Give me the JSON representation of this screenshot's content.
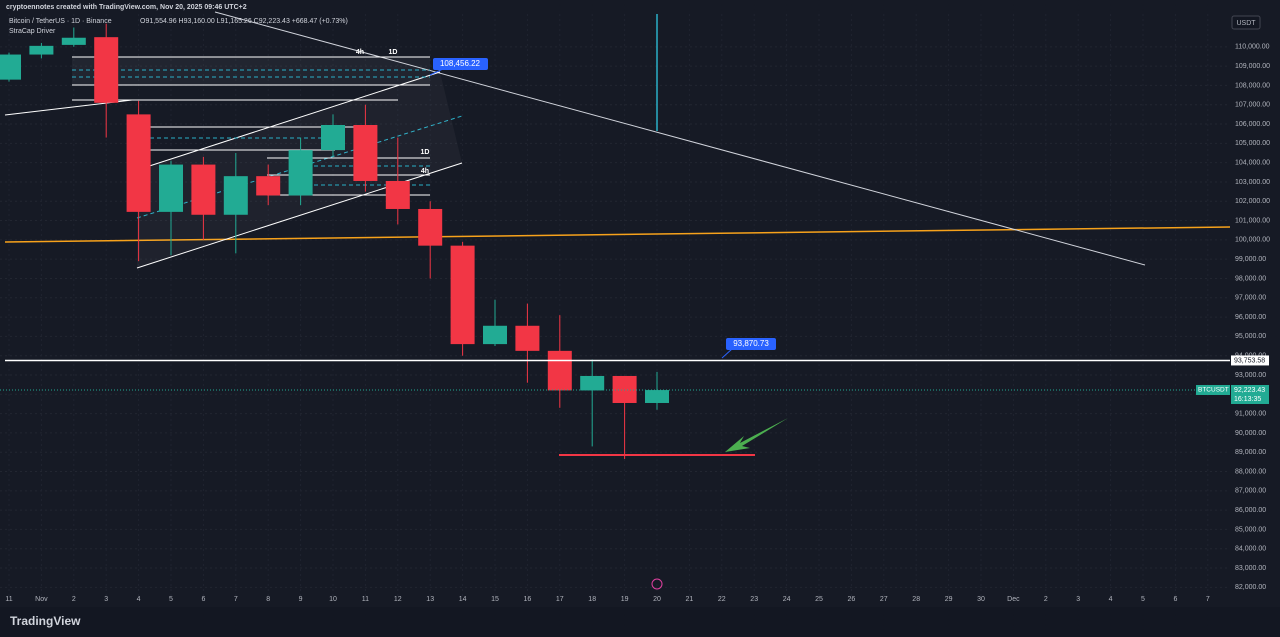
{
  "chart_data": {
    "type": "candlestick",
    "watermark": "cryptoennotes created with TradingView.com, Nov 20, 2025 09:46 UTC+2",
    "title": "Bitcoin / TetherUS · 1D · Binance",
    "ohlc_header": "O91,554.96 H93,160.00 L91,165.26 C92,223.43 +668.47 (+0.73%)",
    "indicator": "StraCap Driver",
    "currency": "USDT",
    "brand": "TradingView",
    "categories": [
      "11",
      "Nov",
      "2",
      "3",
      "4",
      "5",
      "6",
      "7",
      "8",
      "9",
      "10",
      "11",
      "12",
      "13",
      "14",
      "15",
      "16",
      "17",
      "18",
      "19",
      "20",
      "21",
      "22",
      "23",
      "24",
      "25",
      "26",
      "27",
      "28",
      "29",
      "30",
      "Dec",
      "2",
      "3",
      "4",
      "5",
      "6",
      "7"
    ],
    "open": [
      108300,
      109600,
      110100,
      110500,
      106500,
      101450,
      103900,
      101300,
      103300,
      102300,
      104650,
      105950,
      103050,
      101600,
      99700,
      94600,
      95550,
      94250,
      92200,
      92950,
      91550,
      null,
      null,
      null,
      null,
      null,
      null,
      null,
      null,
      null,
      null,
      null,
      null,
      null,
      null,
      null,
      null,
      null
    ],
    "high": [
      109700,
      110200,
      111000,
      111200,
      107200,
      104100,
      104300,
      104500,
      103900,
      105300,
      106500,
      107000,
      105300,
      102000,
      99900,
      96900,
      96700,
      96100,
      93800,
      92950,
      93160,
      null,
      null,
      null,
      null,
      null,
      null,
      null,
      null,
      null,
      null,
      null,
      null,
      null,
      null,
      null,
      null,
      null
    ],
    "low": [
      108200,
      109400,
      110000,
      105300,
      98900,
      99200,
      100000,
      99300,
      101800,
      101800,
      104300,
      102500,
      100800,
      98000,
      94000,
      94500,
      92600,
      91300,
      89300,
      88650,
      91200,
      null,
      null,
      null,
      null,
      null,
      null,
      null,
      null,
      null,
      null,
      null,
      null,
      null,
      null,
      null,
      null,
      null
    ],
    "close": [
      109600,
      110050,
      110470,
      107100,
      101450,
      103900,
      101300,
      103300,
      102300,
      104650,
      105950,
      103050,
      101600,
      99700,
      94600,
      95550,
      94250,
      92200,
      92950,
      91550,
      92220,
      null,
      null,
      null,
      null,
      null,
      null,
      null,
      null,
      null,
      null,
      null,
      null,
      null,
      null,
      null,
      null,
      null
    ],
    "up_color": "#22ab94",
    "down_color": "#f23645",
    "ylim": [
      81500,
      111700
    ],
    "yticks": [
      {
        "value": 82000,
        "label": "82,000.00"
      },
      {
        "value": 83000,
        "label": "83,000.00"
      },
      {
        "value": 84000,
        "label": "84,000.00"
      },
      {
        "value": 85000,
        "label": "85,000.00"
      },
      {
        "value": 86000,
        "label": "86,000.00"
      },
      {
        "value": 87000,
        "label": "87,000.00"
      },
      {
        "value": 88000,
        "label": "88,000.00"
      },
      {
        "value": 89000,
        "label": "89,000.00"
      },
      {
        "value": 90000,
        "label": "90,000.00"
      },
      {
        "value": 91000,
        "label": "91,000.00"
      },
      {
        "value": 92000,
        "label": "92,000.00"
      },
      {
        "value": 93000,
        "label": "93,000.00"
      },
      {
        "value": 94000,
        "label": "94,000.00"
      },
      {
        "value": 95000,
        "label": "95,000.00"
      },
      {
        "value": 96000,
        "label": "96,000.00"
      },
      {
        "value": 97000,
        "label": "97,000.00"
      },
      {
        "value": 98000,
        "label": "98,000.00"
      },
      {
        "value": 99000,
        "label": "99,000.00"
      },
      {
        "value": 100000,
        "label": "100,000.00"
      },
      {
        "value": 101000,
        "label": "101,000.00"
      },
      {
        "value": 102000,
        "label": "102,000.00"
      },
      {
        "value": 103000,
        "label": "103,000.00"
      },
      {
        "value": 104000,
        "label": "104,000.00"
      },
      {
        "value": 105000,
        "label": "105,000.00"
      },
      {
        "value": 106000,
        "label": "106,000.00"
      },
      {
        "value": 107000,
        "label": "107,000.00"
      },
      {
        "value": 108000,
        "label": "108,000.00"
      },
      {
        "value": 109000,
        "label": "109,000.00"
      },
      {
        "value": 110000,
        "label": "110,000.00"
      }
    ],
    "grid": true,
    "price_line": {
      "value": 93753.58,
      "label": "93,753.58"
    },
    "last_price": {
      "value": 92223.43,
      "label": "92,223.43",
      "countdown": "16:13:35",
      "symbol": "BTCUSDT"
    },
    "callouts": [
      "108,456.22",
      "93,870.73"
    ],
    "annotations": [
      "4h",
      "1D",
      "1D",
      "4h"
    ]
  }
}
